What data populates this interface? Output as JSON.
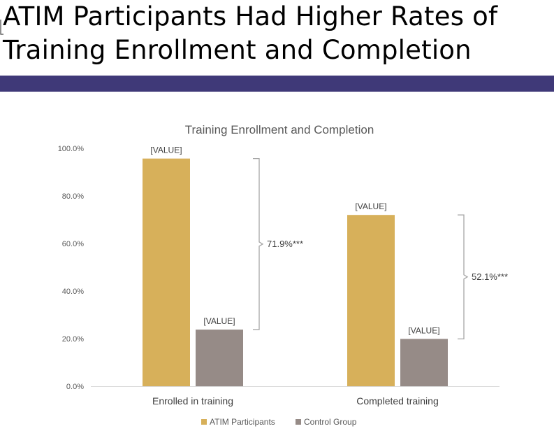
{
  "slide": {
    "title_line1": "ATIM Participants Had Higher Rates of",
    "title_line2": "Training Enrollment and Completion",
    "accent_color": "#3f3978"
  },
  "chart_data": {
    "type": "bar",
    "title": "Training Enrollment and Completion",
    "categories": [
      "Enrolled in training",
      "Completed training"
    ],
    "series": [
      {
        "name": "ATIM Participants",
        "color": "#d7b05a",
        "values": [
          95.7,
          72.0
        ],
        "labels": [
          "[VALUE]",
          "[VALUE]"
        ]
      },
      {
        "name": "Control Group",
        "color": "#968b87",
        "values": [
          23.8,
          19.9
        ],
        "labels": [
          "[VALUE]",
          "[VALUE]"
        ]
      }
    ],
    "ylim": [
      0,
      100
    ],
    "yticks": [
      "0.0%",
      "20.0%",
      "40.0%",
      "60.0%",
      "80.0%",
      "100.0%"
    ],
    "differences": [
      "71.9%***",
      "52.1%***"
    ],
    "grid": false,
    "legend": "bottom"
  }
}
